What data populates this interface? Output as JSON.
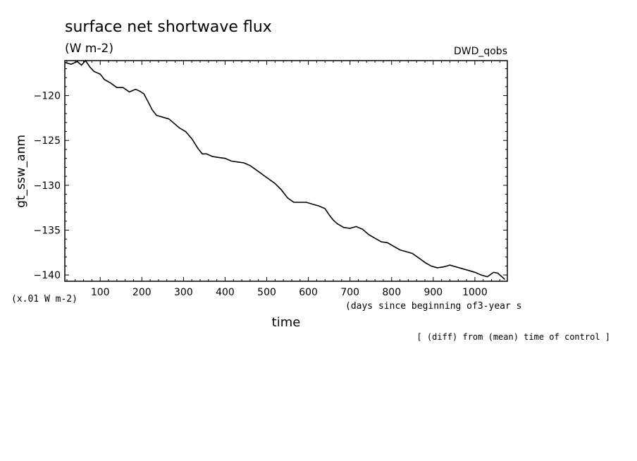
{
  "chart_data": {
    "type": "line",
    "title": "surface net shortwave flux",
    "units": "(W m-2)",
    "dataset_label": "DWD_qobs",
    "ylabel": "gt_ssw_anm",
    "xlabel": "time",
    "x_units_note": "(days since beginning of3-year s",
    "y_scale_note": "(x.01 W m-2)",
    "footnote": "[ (diff) from (mean) time of control ]",
    "xlim": [
      15,
      1078
    ],
    "ylim": [
      -140.7,
      -116.1
    ],
    "x_ticks": [
      100,
      200,
      300,
      400,
      500,
      600,
      700,
      800,
      900,
      1000
    ],
    "y_ticks": [
      -120,
      -125,
      -130,
      -135,
      -140
    ],
    "grid": false,
    "series": [
      {
        "name": "",
        "x": [
          15,
          30,
          45,
          55,
          65,
          75,
          85,
          100,
          110,
          125,
          140,
          155,
          170,
          185,
          195,
          205,
          215,
          225,
          235,
          250,
          265,
          280,
          290,
          305,
          320,
          335,
          345,
          355,
          370,
          385,
          400,
          415,
          430,
          445,
          460,
          475,
          490,
          505,
          520,
          535,
          550,
          565,
          580,
          595,
          610,
          625,
          640,
          650,
          660,
          670,
          685,
          700,
          715,
          730,
          745,
          760,
          775,
          790,
          805,
          820,
          835,
          850,
          865,
          880,
          895,
          910,
          925,
          940,
          955,
          970,
          985,
          1000,
          1015,
          1030,
          1045,
          1055,
          1065,
          1072
        ],
        "y": [
          -116.3,
          -116.5,
          -116.2,
          -116.6,
          -116.1,
          -116.8,
          -117.3,
          -117.6,
          -118.2,
          -118.6,
          -119.1,
          -119.1,
          -119.6,
          -119.3,
          -119.5,
          -119.8,
          -120.7,
          -121.6,
          -122.2,
          -122.4,
          -122.6,
          -123.2,
          -123.6,
          -124.0,
          -124.8,
          -125.9,
          -126.5,
          -126.5,
          -126.8,
          -126.9,
          -127.0,
          -127.3,
          -127.4,
          -127.5,
          -127.8,
          -128.3,
          -128.8,
          -129.3,
          -129.8,
          -130.5,
          -131.4,
          -131.9,
          -131.9,
          -131.9,
          -132.1,
          -132.3,
          -132.6,
          -133.3,
          -133.9,
          -134.3,
          -134.7,
          -134.8,
          -134.6,
          -134.9,
          -135.5,
          -135.9,
          -136.3,
          -136.4,
          -136.8,
          -137.2,
          -137.4,
          -137.6,
          -138.1,
          -138.6,
          -139.0,
          -139.2,
          -139.1,
          -138.9,
          -139.1,
          -139.3,
          -139.5,
          -139.7,
          -140.0,
          -140.2,
          -139.7,
          -139.8,
          -140.2,
          -140.5
        ]
      }
    ]
  }
}
